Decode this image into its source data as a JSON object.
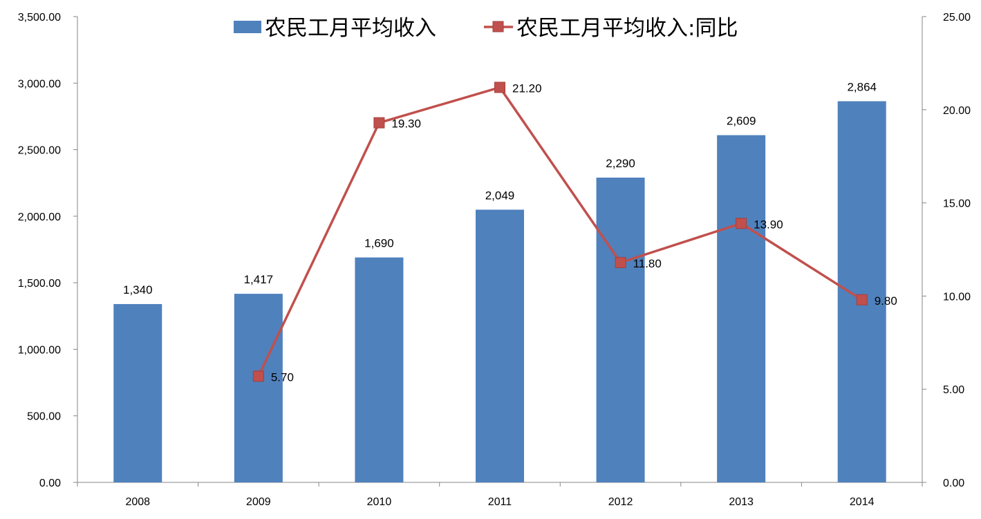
{
  "chart_data": {
    "type": "bar",
    "categories": [
      "2008",
      "2009",
      "2010",
      "2011",
      "2012",
      "2013",
      "2014"
    ],
    "series": [
      {
        "name": "农民工月平均收入",
        "type": "bar",
        "axis": "left",
        "color": "#4F81BD",
        "values": [
          1340,
          1417,
          1690,
          2049,
          2290,
          2609,
          2864
        ],
        "labels": [
          "1,340",
          "1,417",
          "1,690",
          "2,049",
          "2,290",
          "2,609",
          "2,864"
        ]
      },
      {
        "name": "农民工月平均收入:同比",
        "type": "line",
        "axis": "right",
        "color": "#C0504D",
        "values": [
          null,
          5.7,
          19.3,
          21.2,
          11.8,
          13.9,
          9.8
        ],
        "labels": [
          "",
          "5.70",
          "19.30",
          "21.20",
          "11.80",
          "13.90",
          "9.80"
        ]
      }
    ],
    "y_left": {
      "ylim": [
        0,
        3500
      ],
      "ticks": [
        "0.00",
        "500.00",
        "1,000.00",
        "1,500.00",
        "2,000.00",
        "2,500.00",
        "3,000.00",
        "3,500.00"
      ]
    },
    "y_right": {
      "ylim": [
        0,
        25
      ],
      "ticks": [
        "0.00",
        "5.00",
        "10.00",
        "15.00",
        "20.00",
        "25.00"
      ]
    },
    "grid": false,
    "legend": "top-center"
  }
}
